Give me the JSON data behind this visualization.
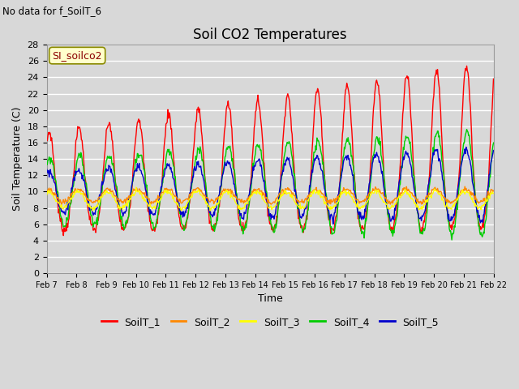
{
  "title": "Soil CO2 Temperatures",
  "subtitle": "No data for f_SoilT_6",
  "xlabel": "Time",
  "ylabel": "Soil Temperature (C)",
  "ylim": [
    0,
    28
  ],
  "yticks": [
    0,
    2,
    4,
    6,
    8,
    10,
    12,
    14,
    16,
    18,
    20,
    22,
    24,
    26,
    28
  ],
  "xtick_labels": [
    "Feb 7",
    "Feb 8",
    "Feb 9",
    "Feb 10",
    "Feb 11",
    "Feb 12",
    "Feb 13",
    "Feb 14",
    "Feb 15",
    "Feb 16",
    "Feb 17",
    "Feb 18",
    "Feb 19",
    "Feb 20",
    "Feb 21",
    "Feb 22"
  ],
  "annotation": "SI_soilco2",
  "bg_color": "#d8d8d8",
  "plot_bg_color": "#d8d8d8",
  "grid_color": "white",
  "series_colors": {
    "SoilT_1": "#ff0000",
    "SoilT_2": "#ff8800",
    "SoilT_3": "#ffff00",
    "SoilT_4": "#00cc00",
    "SoilT_5": "#0000cc"
  },
  "legend_labels": [
    "SoilT_1",
    "SoilT_2",
    "SoilT_3",
    "SoilT_4",
    "SoilT_5"
  ]
}
